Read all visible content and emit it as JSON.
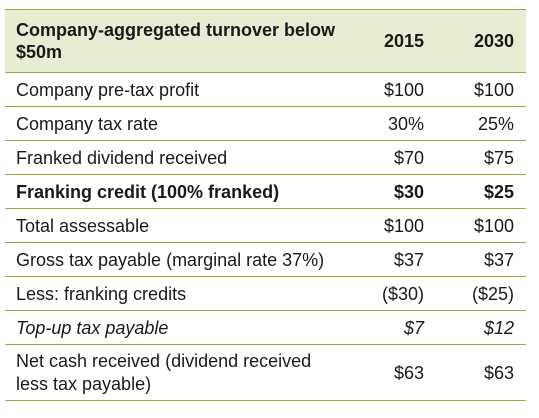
{
  "table": {
    "header": {
      "label": "Company-aggregated turnover below $50m",
      "col_2015": "2015",
      "col_2030": "2030"
    },
    "rows": [
      {
        "label": "Company pre-tax profit",
        "v2015": "$100",
        "v2030": "$100"
      },
      {
        "label": "Company tax rate",
        "v2015": "30%",
        "v2030": "25%"
      },
      {
        "label": "Franked dividend received",
        "v2015": "$70",
        "v2030": "$75"
      },
      {
        "label": "Franking credit (100% franked)",
        "v2015": "$30",
        "v2030": "$25"
      },
      {
        "label": "Total assessable",
        "v2015": "$100",
        "v2030": "$100"
      },
      {
        "label": "Gross tax payable (marginal rate 37%)",
        "v2015": "$37",
        "v2030": "$37"
      },
      {
        "label": "Less: franking credits",
        "v2015": "($30)",
        "v2030": "($25)"
      },
      {
        "label": "Top-up tax payable",
        "v2015": "$7",
        "v2030": "$12"
      },
      {
        "label": "Net cash received (dividend received less tax payable)",
        "v2015": "$63",
        "v2030": "$63"
      }
    ]
  },
  "colors": {
    "header_bg": "#e7edd3",
    "rule": "#8cb13f",
    "text": "#1a1a1a"
  }
}
